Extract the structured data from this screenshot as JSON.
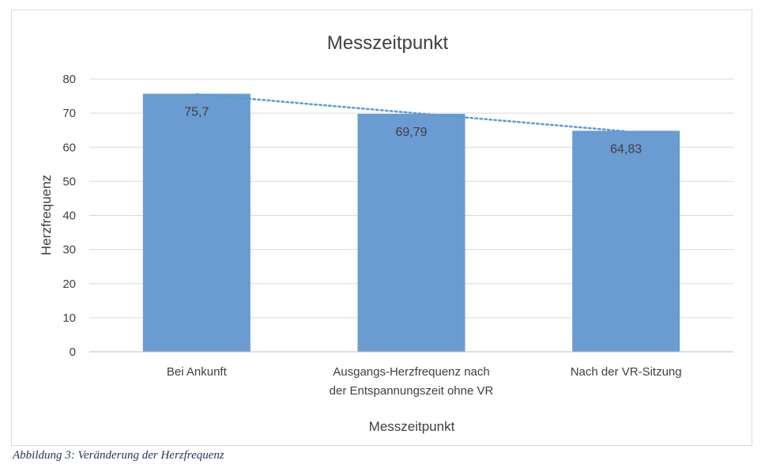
{
  "chart_data": {
    "type": "bar",
    "title": "Messzeitpunkt",
    "xlabel": "Messzeitpunkt",
    "ylabel": "Herzfrequenz",
    "categories": [
      [
        "Bei Ankunft"
      ],
      [
        "Ausgangs-Herzfrequenz nach",
        "der Entspannungszeit ohne VR"
      ],
      [
        "Nach der VR-Sitzung"
      ]
    ],
    "values": [
      75.7,
      69.79,
      64.83
    ],
    "data_labels": [
      "75,7",
      "69,79",
      "64,83"
    ],
    "ylim": [
      0,
      80
    ],
    "yticks": [
      0,
      10,
      20,
      30,
      40,
      50,
      60,
      70,
      80
    ],
    "grid": true,
    "trendline": {
      "type": "linear",
      "style": "dotted"
    },
    "colors": {
      "bar": "#6a9bd1",
      "trendline": "#5b9bd5",
      "grid": "#d9d9d9",
      "text": "#404040"
    }
  },
  "caption": "Abbildung 3: Veränderung der Herzfrequenz"
}
